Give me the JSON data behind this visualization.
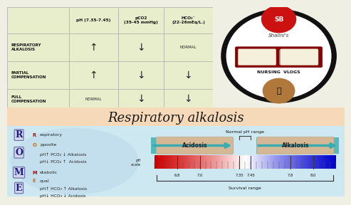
{
  "title": "Respiratory alkalosis",
  "bg_top": "#f0efe4",
  "bg_table": "#e8edcc",
  "bg_mid": "#f5d9b8",
  "bg_bottom": "#cce8f4",
  "table_headers": [
    "pH (7.35-7.45)",
    "pCO2\n(35-45 mmHg)",
    "HCO₃⁻\n(22-26mEq/L.)"
  ],
  "table_rows": [
    {
      "label": "RESPIRATORY\nALKALOSIS",
      "ph": "↑",
      "pco2": "↓",
      "hco3": "NORMAL"
    },
    {
      "label": "PARTIAL\nCOMPENSATION",
      "ph": "↑",
      "pco2": "↓",
      "hco3": "↓"
    },
    {
      "label": "FULL\nCOMPENSATION",
      "ph": "NORMAL",
      "pco2": "↓",
      "hco3": "↓"
    }
  ],
  "rome_lines": [
    [
      "R",
      "espiratory"
    ],
    [
      "O",
      "pposite"
    ],
    [
      "",
      "pH↑ PCO₂ ↓ Alkalosis"
    ],
    [
      "",
      "pH↓ PCO₂ ↑  Acidosis"
    ],
    [
      "M",
      "etabolic"
    ],
    [
      "E",
      "qual"
    ],
    [
      "",
      "pH↑ HCO₃ ↑ Alkalosis"
    ],
    [
      "",
      "pH↓ HCO₃ ↓ Acidosis"
    ]
  ],
  "letter_colors": {
    "R": "#cc0000",
    "O": "#cc6600",
    "M": "#cc0000",
    "E": "#cc6600"
  },
  "ph_scale_values": [
    6.8,
    7.0,
    7.35,
    7.45,
    7.8,
    8.0
  ],
  "ph_scale_labels": [
    "6.8",
    "7.0",
    "7.35",
    "7.45",
    "7.8",
    "8.0"
  ],
  "normal_range_label": "Normal pH range",
  "acidosis_label": "Acidosis",
  "alkalosis_label": "Alkalosis",
  "survival_label": "Survival range",
  "teal_color": "#3aacb0",
  "box_color": "#d4b896",
  "oval_color": "#bbd8ee"
}
